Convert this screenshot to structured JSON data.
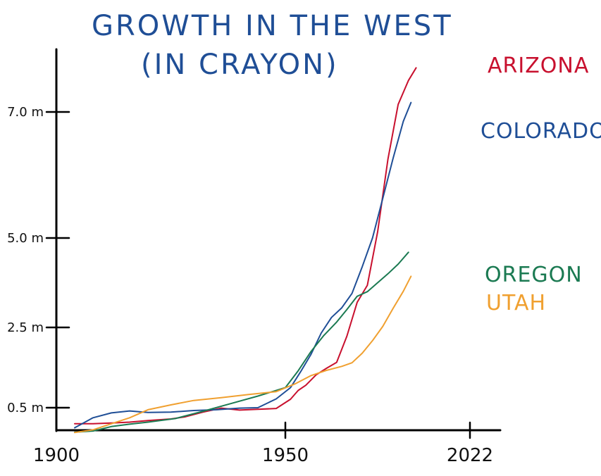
{
  "chart_data": {
    "type": "line",
    "title_line1": "GROWTH IN THE WEST",
    "title_line2": "(IN CRAYON)",
    "xlabel": "",
    "ylabel": "",
    "xlim": [
      1900,
      2022
    ],
    "ylim": [
      0,
      7.5
    ],
    "x_ticks": [
      {
        "value": 1900,
        "label": "1900"
      },
      {
        "value": 1950,
        "label": "1950"
      },
      {
        "value": 2022,
        "label": "2022"
      }
    ],
    "y_ticks": [
      {
        "value": 0.5,
        "label": "0.5 m"
      },
      {
        "value": 2.5,
        "label": "2.5 m"
      },
      {
        "value": 5.0,
        "label": "5.0 m"
      },
      {
        "value": 7.0,
        "label": "7.0 m"
      }
    ],
    "series": [
      {
        "name": "ARIZONA",
        "color": "#c8102e",
        "points": [
          [
            1904,
            0.1
          ],
          [
            1908,
            0.1
          ],
          [
            1912,
            0.12
          ],
          [
            1916,
            0.14
          ],
          [
            1920,
            0.18
          ],
          [
            1925,
            0.22
          ],
          [
            1928,
            0.27
          ],
          [
            1932,
            0.39
          ],
          [
            1936,
            0.49
          ],
          [
            1940,
            0.44
          ],
          [
            1944,
            0.46
          ],
          [
            1948,
            0.48
          ],
          [
            1952,
            0.71
          ],
          [
            1955,
            0.93
          ],
          [
            1958,
            1.06
          ],
          [
            1962,
            1.32
          ],
          [
            1966,
            1.48
          ],
          [
            1970,
            1.63
          ],
          [
            1974,
            2.28
          ],
          [
            1978,
            3.2
          ],
          [
            1982,
            3.68
          ],
          [
            1986,
            5.1
          ],
          [
            1990,
            6.25
          ],
          [
            1994,
            7.12
          ],
          [
            1998,
            7.5
          ],
          [
            2001,
            7.7
          ]
        ]
      },
      {
        "name": "COLORADO",
        "color": "#1f4e96",
        "points": [
          [
            1904,
            0.0
          ],
          [
            1908,
            0.25
          ],
          [
            1912,
            0.37
          ],
          [
            1916,
            0.42
          ],
          [
            1920,
            0.38
          ],
          [
            1925,
            0.39
          ],
          [
            1930,
            0.43
          ],
          [
            1935,
            0.45
          ],
          [
            1940,
            0.49
          ],
          [
            1944,
            0.5
          ],
          [
            1948,
            0.72
          ],
          [
            1952,
            1.0
          ],
          [
            1956,
            1.4
          ],
          [
            1960,
            1.83
          ],
          [
            1964,
            2.36
          ],
          [
            1968,
            2.78
          ],
          [
            1972,
            3.05
          ],
          [
            1976,
            3.45
          ],
          [
            1980,
            4.2
          ],
          [
            1984,
            5.0
          ],
          [
            1988,
            5.63
          ],
          [
            1992,
            6.26
          ],
          [
            1996,
            6.85
          ],
          [
            1999,
            7.15
          ]
        ]
      },
      {
        "name": "OREGON",
        "color": "#1b7a52",
        "points": [
          [
            1904,
            -0.11
          ],
          [
            1908,
            -0.08
          ],
          [
            1912,
            0.03
          ],
          [
            1916,
            0.09
          ],
          [
            1920,
            0.14
          ],
          [
            1926,
            0.23
          ],
          [
            1932,
            0.41
          ],
          [
            1938,
            0.6
          ],
          [
            1944,
            0.79
          ],
          [
            1950,
            1.0
          ],
          [
            1955,
            1.42
          ],
          [
            1960,
            1.9
          ],
          [
            1965,
            2.3
          ],
          [
            1970,
            2.65
          ],
          [
            1974,
            3.0
          ],
          [
            1978,
            3.37
          ],
          [
            1982,
            3.5
          ],
          [
            1986,
            3.75
          ],
          [
            1990,
            4.0
          ],
          [
            1994,
            4.27
          ],
          [
            1998,
            4.6
          ]
        ]
      },
      {
        "name": "UTAH",
        "color": "#f0a030",
        "points": [
          [
            1904,
            -0.12
          ],
          [
            1908,
            -0.05
          ],
          [
            1912,
            0.1
          ],
          [
            1916,
            0.25
          ],
          [
            1920,
            0.45
          ],
          [
            1925,
            0.57
          ],
          [
            1930,
            0.68
          ],
          [
            1936,
            0.75
          ],
          [
            1942,
            0.83
          ],
          [
            1948,
            0.9
          ],
          [
            1954,
            1.1
          ],
          [
            1960,
            1.3
          ],
          [
            1966,
            1.43
          ],
          [
            1972,
            1.53
          ],
          [
            1976,
            1.62
          ],
          [
            1980,
            1.86
          ],
          [
            1984,
            2.17
          ],
          [
            1988,
            2.53
          ],
          [
            1992,
            3.03
          ],
          [
            1996,
            3.51
          ],
          [
            1999,
            3.93
          ]
        ]
      }
    ]
  }
}
